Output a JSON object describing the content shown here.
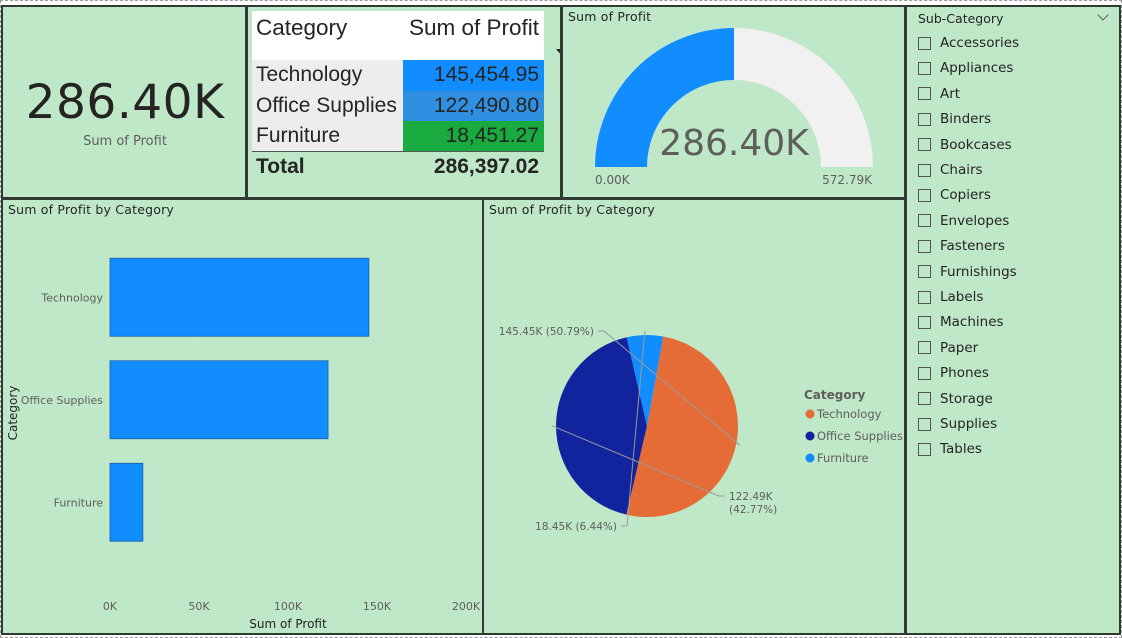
{
  "kpi": {
    "value": "286.40K",
    "label": "Sum of Profit"
  },
  "table": {
    "headers": [
      "Category",
      "Sum of Profit"
    ],
    "rows": [
      {
        "category": "Technology",
        "value": "145,454.95",
        "color": "#118dff"
      },
      {
        "category": "Office Supplies",
        "value": "122,490.80",
        "color": "#2f8fe0"
      },
      {
        "category": "Furniture",
        "value": "18,451.27",
        "color": "#1aab40"
      }
    ],
    "total_label": "Total",
    "total_value": "286,397.02"
  },
  "gauge": {
    "title": "Sum of Profit",
    "value_label": "286.40K",
    "min_label": "0.00K",
    "max_label": "572.79K",
    "fraction": 0.5,
    "fill_color": "#118dff",
    "track_color": "#f1f1f1"
  },
  "slicer": {
    "title": "Sub-Category",
    "items": [
      "Accessories",
      "Appliances",
      "Art",
      "Binders",
      "Bookcases",
      "Chairs",
      "Copiers",
      "Envelopes",
      "Fasteners",
      "Furnishings",
      "Labels",
      "Machines",
      "Paper",
      "Phones",
      "Storage",
      "Supplies",
      "Tables"
    ]
  },
  "chart_data": [
    {
      "type": "bar",
      "orientation": "horizontal",
      "title": "Sum of Profit by Category",
      "xlabel": "Sum of Profit",
      "ylabel": "Category",
      "categories": [
        "Technology",
        "Office Supplies",
        "Furniture"
      ],
      "values": [
        145454.95,
        122490.8,
        18451.27
      ],
      "xlim": [
        0,
        200000
      ],
      "ticks": [
        "0K",
        "50K",
        "100K",
        "150K",
        "200K"
      ],
      "tick_values": [
        0,
        50000,
        100000,
        150000,
        200000
      ],
      "bar_color": "#118dff",
      "grid": true
    },
    {
      "type": "pie",
      "title": "Sum of Profit by Category",
      "legend_title": "Category",
      "legend_position": "right",
      "categories": [
        "Technology",
        "Office Supplies",
        "Furniture"
      ],
      "values": [
        145454.95,
        122490.8,
        18451.27
      ],
      "colors": [
        "#e66c37",
        "#12239e",
        "#118dff"
      ],
      "data_labels": [
        "145.45K (50.79%)",
        "122.49K (42.77%)",
        "18.45K (6.44%)"
      ],
      "data_labels_split": [
        [
          "145.45K (50.79%)"
        ],
        [
          "122.49K",
          "(42.77%)"
        ],
        [
          "18.45K (6.44%)"
        ]
      ]
    }
  ]
}
